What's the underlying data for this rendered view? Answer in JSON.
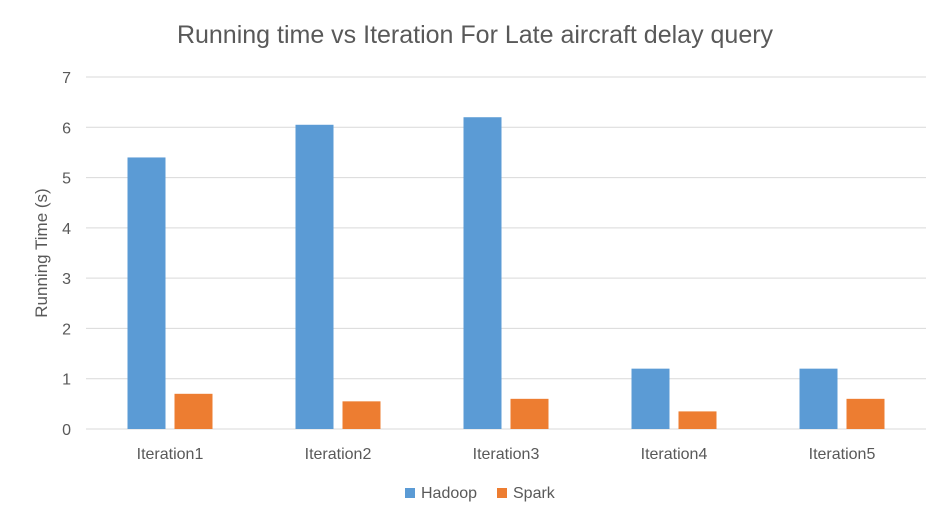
{
  "chart_data": {
    "type": "bar",
    "title": "Running time vs Iteration For Late aircraft delay query",
    "xlabel": "",
    "ylabel": "Running Time (s)",
    "ylim": [
      0,
      7
    ],
    "yticks": [
      0,
      1,
      2,
      3,
      4,
      5,
      6,
      7
    ],
    "grid": true,
    "legend_position": "bottom",
    "categories": [
      "Iteration1",
      "Iteration2",
      "Iteration3",
      "Iteration4",
      "Iteration5"
    ],
    "series": [
      {
        "name": "Hadoop",
        "color": "#5b9bd5",
        "values": [
          5.4,
          6.05,
          6.2,
          1.2,
          1.2
        ]
      },
      {
        "name": "Spark",
        "color": "#ed7d31",
        "values": [
          0.7,
          0.55,
          0.6,
          0.35,
          0.6
        ]
      }
    ]
  }
}
